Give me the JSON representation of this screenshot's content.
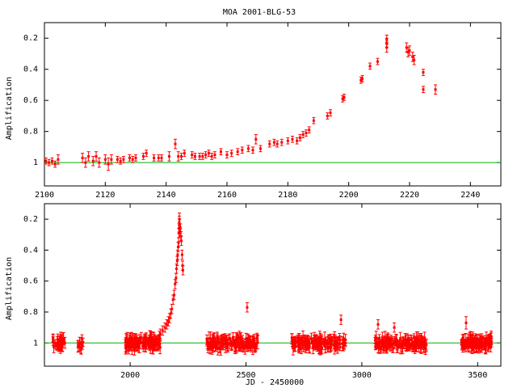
{
  "title": "MOA 2001-BLG-53",
  "colors": {
    "data": "#ff0000",
    "baseline": "#00b000",
    "frame": "#000000"
  },
  "chart_data": [
    {
      "type": "scatter",
      "name": "top-panel",
      "title": "MOA 2001-BLG-53",
      "xlabel": "",
      "ylabel": "Amplification",
      "xlim": [
        2100,
        2250
      ],
      "ylim": [
        0.1,
        1.15
      ],
      "y_inverted": true,
      "x_ticks": [
        2100,
        2120,
        2140,
        2160,
        2180,
        2200,
        2220,
        2240
      ],
      "y_ticks": [
        0.2,
        0.4,
        0.6,
        0.8,
        1
      ],
      "x_tick_labels": [
        "2100",
        "2120",
        "2140",
        "2160",
        "2180",
        "2200",
        "2220",
        "2240"
      ],
      "y_tick_labels": [
        "0.2",
        "0.4",
        "0.6",
        "0.8",
        "1"
      ],
      "baseline": 1,
      "series": [
        {
          "points": [
            {
              "x": 2100.5,
              "y": 0.99,
              "e": 0.02
            },
            {
              "x": 2101.5,
              "y": 1.0,
              "e": 0.02
            },
            {
              "x": 2102.5,
              "y": 0.99,
              "e": 0.02
            },
            {
              "x": 2103.5,
              "y": 1.01,
              "e": 0.02
            },
            {
              "x": 2104.5,
              "y": 0.98,
              "e": 0.03
            },
            {
              "x": 2112.5,
              "y": 0.97,
              "e": 0.03
            },
            {
              "x": 2113.5,
              "y": 1.0,
              "e": 0.03
            },
            {
              "x": 2114.5,
              "y": 0.96,
              "e": 0.03
            },
            {
              "x": 2116.0,
              "y": 0.99,
              "e": 0.03
            },
            {
              "x": 2117.0,
              "y": 0.96,
              "e": 0.03
            },
            {
              "x": 2118.0,
              "y": 1.0,
              "e": 0.03
            },
            {
              "x": 2120.0,
              "y": 0.98,
              "e": 0.03
            },
            {
              "x": 2121.0,
              "y": 1.01,
              "e": 0.04
            },
            {
              "x": 2122.0,
              "y": 0.98,
              "e": 0.03
            },
            {
              "x": 2124.0,
              "y": 0.98,
              "e": 0.02
            },
            {
              "x": 2125.0,
              "y": 0.99,
              "e": 0.02
            },
            {
              "x": 2126.0,
              "y": 0.98,
              "e": 0.02
            },
            {
              "x": 2128.0,
              "y": 0.97,
              "e": 0.02
            },
            {
              "x": 2129.0,
              "y": 0.98,
              "e": 0.02
            },
            {
              "x": 2130.0,
              "y": 0.97,
              "e": 0.02
            },
            {
              "x": 2132.5,
              "y": 0.96,
              "e": 0.02
            },
            {
              "x": 2133.5,
              "y": 0.94,
              "e": 0.02
            },
            {
              "x": 2136.0,
              "y": 0.97,
              "e": 0.02
            },
            {
              "x": 2137.5,
              "y": 0.97,
              "e": 0.02
            },
            {
              "x": 2138.5,
              "y": 0.97,
              "e": 0.02
            },
            {
              "x": 2141.0,
              "y": 0.96,
              "e": 0.03
            },
            {
              "x": 2143.0,
              "y": 0.88,
              "e": 0.03
            },
            {
              "x": 2144.0,
              "y": 0.96,
              "e": 0.03
            },
            {
              "x": 2145.0,
              "y": 0.96,
              "e": 0.02
            },
            {
              "x": 2146.0,
              "y": 0.94,
              "e": 0.02
            },
            {
              "x": 2148.5,
              "y": 0.95,
              "e": 0.02
            },
            {
              "x": 2149.5,
              "y": 0.96,
              "e": 0.02
            },
            {
              "x": 2151.0,
              "y": 0.96,
              "e": 0.02
            },
            {
              "x": 2152.0,
              "y": 0.96,
              "e": 0.02
            },
            {
              "x": 2153.0,
              "y": 0.95,
              "e": 0.02
            },
            {
              "x": 2154.0,
              "y": 0.94,
              "e": 0.02
            },
            {
              "x": 2155.0,
              "y": 0.96,
              "e": 0.02
            },
            {
              "x": 2156.0,
              "y": 0.95,
              "e": 0.02
            },
            {
              "x": 2158.0,
              "y": 0.93,
              "e": 0.02
            },
            {
              "x": 2160.0,
              "y": 0.95,
              "e": 0.02
            },
            {
              "x": 2161.5,
              "y": 0.94,
              "e": 0.02
            },
            {
              "x": 2163.5,
              "y": 0.93,
              "e": 0.02
            },
            {
              "x": 2165.0,
              "y": 0.92,
              "e": 0.02
            },
            {
              "x": 2167.0,
              "y": 0.91,
              "e": 0.02
            },
            {
              "x": 2168.5,
              "y": 0.92,
              "e": 0.02
            },
            {
              "x": 2169.5,
              "y": 0.85,
              "e": 0.03
            },
            {
              "x": 2171.0,
              "y": 0.91,
              "e": 0.02
            },
            {
              "x": 2174.0,
              "y": 0.88,
              "e": 0.02
            },
            {
              "x": 2175.5,
              "y": 0.87,
              "e": 0.02
            },
            {
              "x": 2176.5,
              "y": 0.88,
              "e": 0.02
            },
            {
              "x": 2178.0,
              "y": 0.87,
              "e": 0.02
            },
            {
              "x": 2180.0,
              "y": 0.86,
              "e": 0.02
            },
            {
              "x": 2181.5,
              "y": 0.85,
              "e": 0.02
            },
            {
              "x": 2183.0,
              "y": 0.86,
              "e": 0.02
            },
            {
              "x": 2184.0,
              "y": 0.84,
              "e": 0.02
            },
            {
              "x": 2185.0,
              "y": 0.82,
              "e": 0.02
            },
            {
              "x": 2186.0,
              "y": 0.81,
              "e": 0.02
            },
            {
              "x": 2187.0,
              "y": 0.79,
              "e": 0.02
            },
            {
              "x": 2188.5,
              "y": 0.73,
              "e": 0.02
            },
            {
              "x": 2193.0,
              "y": 0.7,
              "e": 0.02
            },
            {
              "x": 2194.0,
              "y": 0.68,
              "e": 0.02
            },
            {
              "x": 2198.0,
              "y": 0.59,
              "e": 0.02
            },
            {
              "x": 2198.5,
              "y": 0.58,
              "e": 0.02
            },
            {
              "x": 2204.0,
              "y": 0.47,
              "e": 0.02
            },
            {
              "x": 2204.5,
              "y": 0.46,
              "e": 0.02
            },
            {
              "x": 2207.0,
              "y": 0.38,
              "e": 0.02
            },
            {
              "x": 2209.5,
              "y": 0.35,
              "e": 0.02
            },
            {
              "x": 2212.5,
              "y": 0.23,
              "e": 0.03
            },
            {
              "x": 2212.5,
              "y": 0.26,
              "e": 0.03
            },
            {
              "x": 2212.5,
              "y": 0.21,
              "e": 0.03
            },
            {
              "x": 2219.0,
              "y": 0.26,
              "e": 0.03
            },
            {
              "x": 2219.5,
              "y": 0.29,
              "e": 0.03
            },
            {
              "x": 2220.0,
              "y": 0.28,
              "e": 0.03
            },
            {
              "x": 2221.0,
              "y": 0.32,
              "e": 0.03
            },
            {
              "x": 2221.5,
              "y": 0.34,
              "e": 0.03
            },
            {
              "x": 2224.5,
              "y": 0.42,
              "e": 0.02
            },
            {
              "x": 2224.5,
              "y": 0.53,
              "e": 0.02
            },
            {
              "x": 2228.5,
              "y": 0.53,
              "e": 0.03
            }
          ]
        }
      ]
    },
    {
      "type": "scatter",
      "name": "bottom-panel",
      "title": "",
      "xlabel": "JD - 2450000",
      "ylabel": "Amplification",
      "xlim": [
        1630,
        3600
      ],
      "ylim": [
        0.1,
        1.15
      ],
      "y_inverted": true,
      "x_ticks": [
        2000,
        2500,
        3000,
        3500
      ],
      "y_ticks": [
        0.2,
        0.4,
        0.6,
        0.8,
        1
      ],
      "x_tick_labels": [
        "2000",
        "2500",
        "3000",
        "3500"
      ],
      "y_tick_labels": [
        "0.2",
        "0.4",
        "0.6",
        "0.8",
        "1"
      ],
      "baseline": 1,
      "segments": [
        {
          "x0": 1665,
          "x1": 1720,
          "n": 34,
          "seed": 11
        },
        {
          "x0": 1770,
          "x1": 1800,
          "n": 10,
          "seed": 12
        },
        {
          "x0": 1980,
          "x1": 2130,
          "n": 120,
          "seed": 13
        },
        {
          "x0": 2330,
          "x1": 2550,
          "n": 140,
          "seed": 14
        },
        {
          "x0": 2695,
          "x1": 2930,
          "n": 150,
          "seed": 15
        },
        {
          "x0": 3055,
          "x1": 3280,
          "n": 150,
          "seed": 16
        },
        {
          "x0": 3430,
          "x1": 3560,
          "n": 110,
          "seed": 17
        }
      ],
      "series": [
        {
          "points": [
            {
              "x": 2130,
              "y": 0.94,
              "e": 0.03
            },
            {
              "x": 2140,
              "y": 0.92,
              "e": 0.03
            },
            {
              "x": 2150,
              "y": 0.9,
              "e": 0.03
            },
            {
              "x": 2158,
              "y": 0.88,
              "e": 0.03
            },
            {
              "x": 2165,
              "y": 0.86,
              "e": 0.03
            },
            {
              "x": 2170,
              "y": 0.84,
              "e": 0.03
            },
            {
              "x": 2175,
              "y": 0.81,
              "e": 0.03
            },
            {
              "x": 2180,
              "y": 0.78,
              "e": 0.03
            },
            {
              "x": 2185,
              "y": 0.72,
              "e": 0.03
            },
            {
              "x": 2190,
              "y": 0.69,
              "e": 0.03
            },
            {
              "x": 2194,
              "y": 0.62,
              "e": 0.03
            },
            {
              "x": 2198,
              "y": 0.58,
              "e": 0.03
            },
            {
              "x": 2200,
              "y": 0.52,
              "e": 0.03
            },
            {
              "x": 2203,
              "y": 0.47,
              "e": 0.03
            },
            {
              "x": 2205,
              "y": 0.43,
              "e": 0.03
            },
            {
              "x": 2207,
              "y": 0.38,
              "e": 0.03
            },
            {
              "x": 2209,
              "y": 0.35,
              "e": 0.03
            },
            {
              "x": 2210,
              "y": 0.29,
              "e": 0.03
            },
            {
              "x": 2211,
              "y": 0.26,
              "e": 0.03
            },
            {
              "x": 2212,
              "y": 0.22,
              "e": 0.04
            },
            {
              "x": 2212.5,
              "y": 0.2,
              "e": 0.04
            },
            {
              "x": 2213,
              "y": 0.24,
              "e": 0.04
            },
            {
              "x": 2215,
              "y": 0.28,
              "e": 0.03
            },
            {
              "x": 2217,
              "y": 0.26,
              "e": 0.03
            },
            {
              "x": 2219,
              "y": 0.31,
              "e": 0.03
            },
            {
              "x": 2221,
              "y": 0.34,
              "e": 0.03
            },
            {
              "x": 2224,
              "y": 0.43,
              "e": 0.03
            },
            {
              "x": 2226,
              "y": 0.5,
              "e": 0.03
            },
            {
              "x": 2228,
              "y": 0.53,
              "e": 0.03
            },
            {
              "x": 2505,
              "y": 0.77,
              "e": 0.03
            },
            {
              "x": 2910,
              "y": 0.85,
              "e": 0.03
            },
            {
              "x": 3070,
              "y": 0.88,
              "e": 0.03
            },
            {
              "x": 3140,
              "y": 0.9,
              "e": 0.03
            },
            {
              "x": 3450,
              "y": 0.87,
              "e": 0.04
            }
          ]
        }
      ]
    }
  ]
}
